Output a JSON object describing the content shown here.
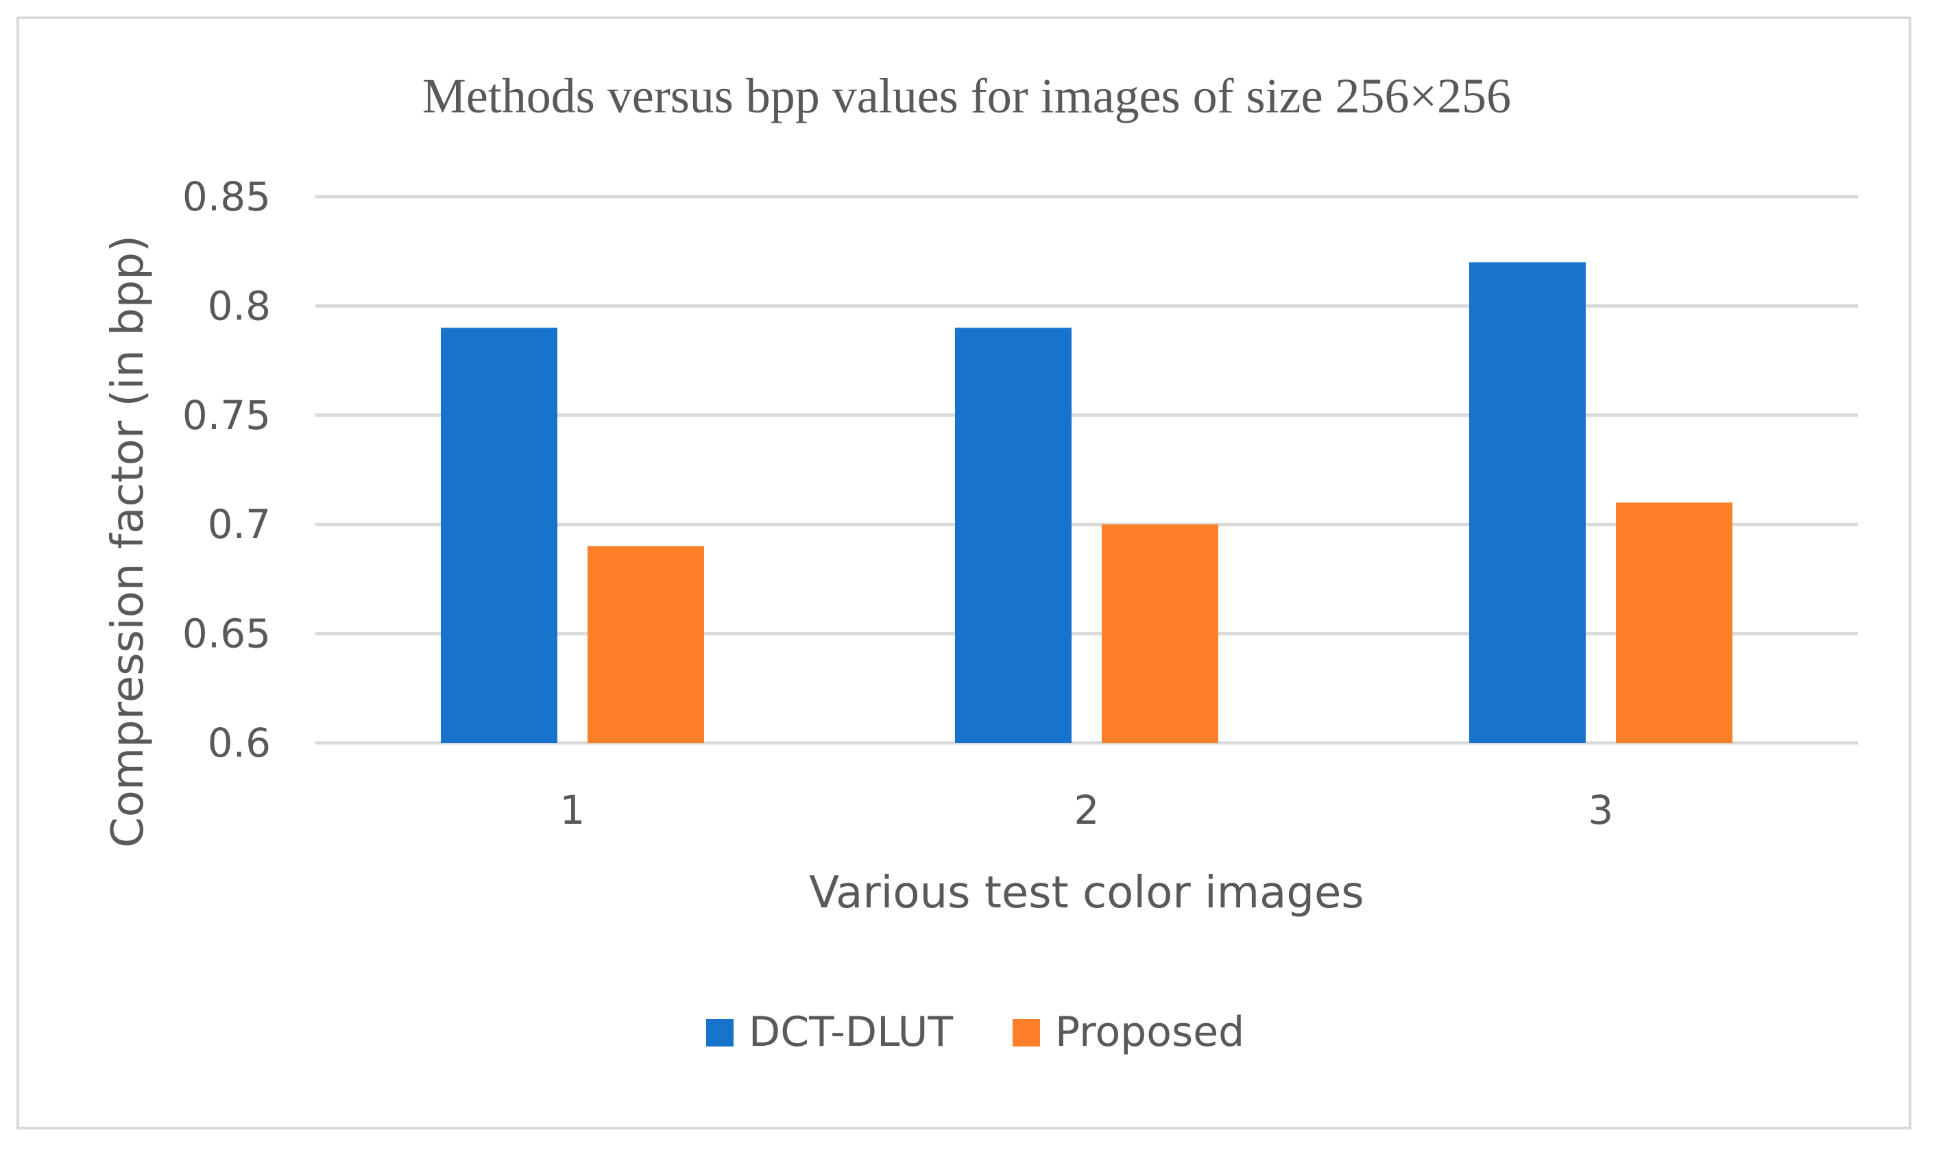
{
  "chart_data": {
    "type": "bar",
    "title": "Methods versus bpp values for images of size 256×256",
    "xlabel": "Various test color images",
    "ylabel": "Compression factor (in bpp)",
    "categories": [
      "1",
      "2",
      "3"
    ],
    "series": [
      {
        "name": "DCT-DLUT",
        "values": [
          0.79,
          0.79,
          0.82
        ],
        "color": "#1873cc"
      },
      {
        "name": "Proposed",
        "values": [
          0.69,
          0.7,
          0.71
        ],
        "color": "#fd7f28"
      }
    ],
    "yticks": [
      "0.6",
      "0.65",
      "0.7",
      "0.75",
      "0.8",
      "0.85"
    ],
    "ylim": [
      0.6,
      0.85
    ],
    "grid": true,
    "legend_position": "bottom",
    "gridline_color": "#d9d9d9",
    "text_color": "#595959"
  }
}
